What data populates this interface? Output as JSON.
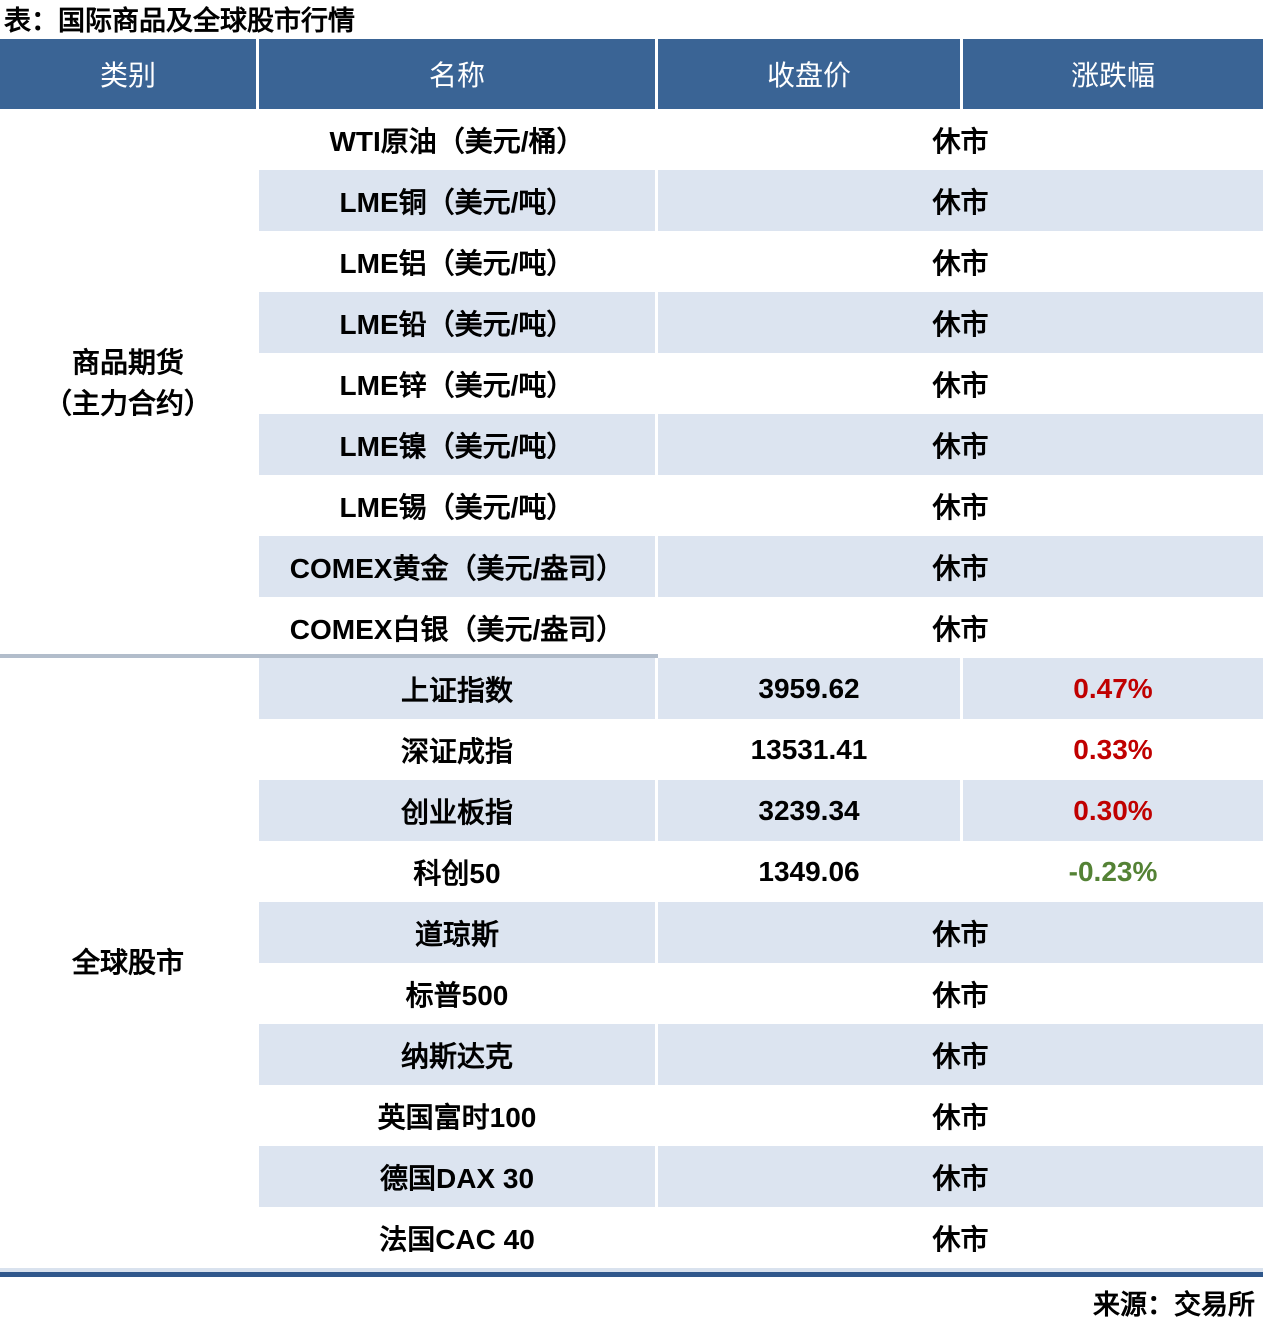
{
  "title": "表：国际商品及全球股市行情",
  "source_note": "来源：交易所",
  "colors": {
    "header_bg": "#3A6495",
    "stripe_blue": "#DCE4F0",
    "row_white": "#FFFFFF",
    "header_text": "#FFFFFF",
    "body_text": "#000000",
    "up": "#C00000",
    "down": "#548235",
    "section_divider": "#B2BDCB",
    "bottom_border_light": "#D9E2EE",
    "bottom_border_dark": "#30588C"
  },
  "chart_data": {
    "type": "table",
    "columns": [
      "类别",
      "名称",
      "收盘价",
      "涨跌幅"
    ],
    "closed_label": "休市",
    "sections": [
      {
        "category_lines": [
          "商品期货",
          "（主力合约）"
        ],
        "rows": [
          {
            "name": "WTI原油（美元/桶）",
            "status": "closed"
          },
          {
            "name": "LME铜（美元/吨）",
            "status": "closed"
          },
          {
            "name": "LME铝（美元/吨）",
            "status": "closed"
          },
          {
            "name": "LME铅（美元/吨）",
            "status": "closed"
          },
          {
            "name": "LME锌（美元/吨）",
            "status": "closed"
          },
          {
            "name": "LME镍（美元/吨）",
            "status": "closed"
          },
          {
            "name": "LME锡（美元/吨）",
            "status": "closed"
          },
          {
            "name": "COMEX黄金（美元/盎司）",
            "status": "closed"
          },
          {
            "name": "COMEX白银（美元/盎司）",
            "status": "closed"
          }
        ]
      },
      {
        "category_lines": [
          "全球股市"
        ],
        "rows": [
          {
            "name": "上证指数",
            "status": "open",
            "close": "3959.62",
            "change": "0.47%",
            "direction": "up"
          },
          {
            "name": "深证成指",
            "status": "open",
            "close": "13531.41",
            "change": "0.33%",
            "direction": "up"
          },
          {
            "name": "创业板指",
            "status": "open",
            "close": "3239.34",
            "change": "0.30%",
            "direction": "up"
          },
          {
            "name": "科创50",
            "status": "open",
            "close": "1349.06",
            "change": "-0.23%",
            "direction": "down"
          },
          {
            "name": "道琼斯",
            "status": "closed"
          },
          {
            "name": "标普500",
            "status": "closed"
          },
          {
            "name": "纳斯达克",
            "status": "closed"
          },
          {
            "name": "英国富时100",
            "status": "closed"
          },
          {
            "name": "德国DAX 30",
            "status": "closed"
          },
          {
            "name": "法国CAC 40",
            "status": "closed"
          }
        ]
      }
    ]
  }
}
